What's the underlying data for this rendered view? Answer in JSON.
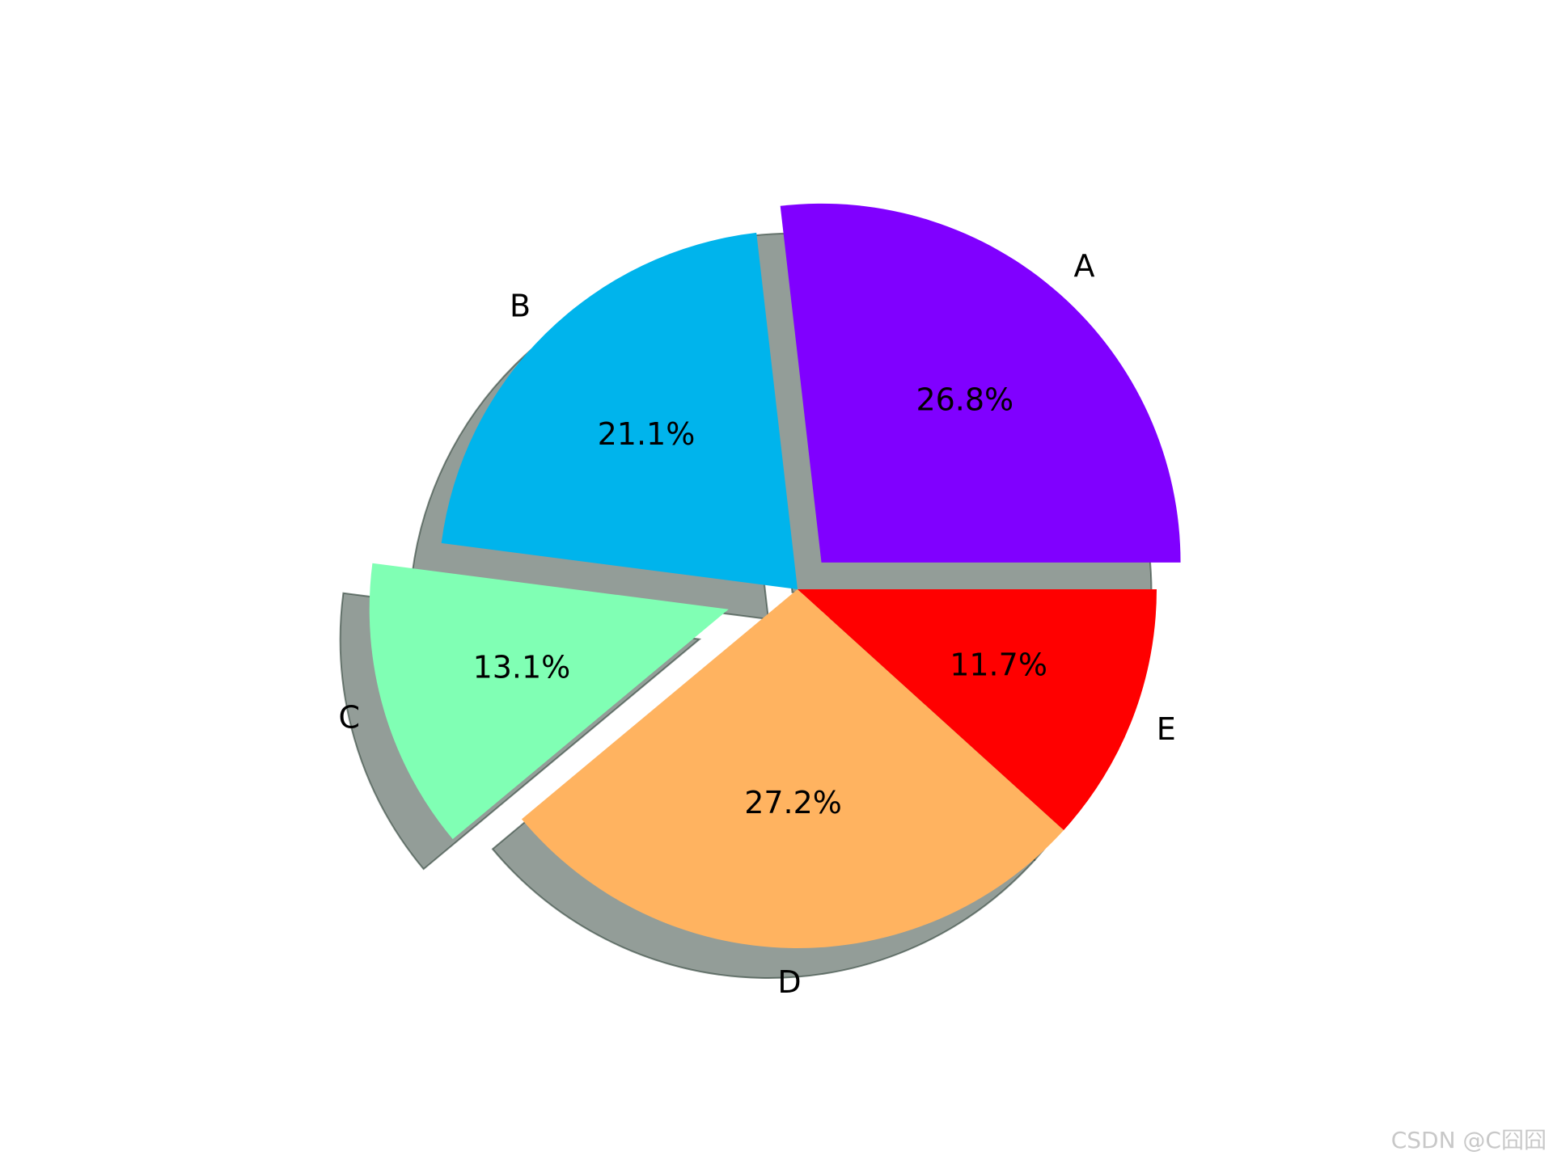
{
  "chart_data": {
    "type": "pie",
    "categories": [
      "A",
      "B",
      "C",
      "D",
      "E"
    ],
    "values": [
      26.8,
      21.1,
      13.1,
      27.2,
      11.7
    ],
    "value_labels": [
      "26.8%",
      "21.1%",
      "13.1%",
      "27.2%",
      "11.7%"
    ],
    "colors": [
      "#8000ff",
      "#00b4ec",
      "#80ffb4",
      "#ffb360",
      "#ff0000"
    ],
    "explode": [
      0.1,
      0,
      0.2,
      0,
      0
    ],
    "shadow": true,
    "watermark": "CSDN @C囧囧"
  }
}
